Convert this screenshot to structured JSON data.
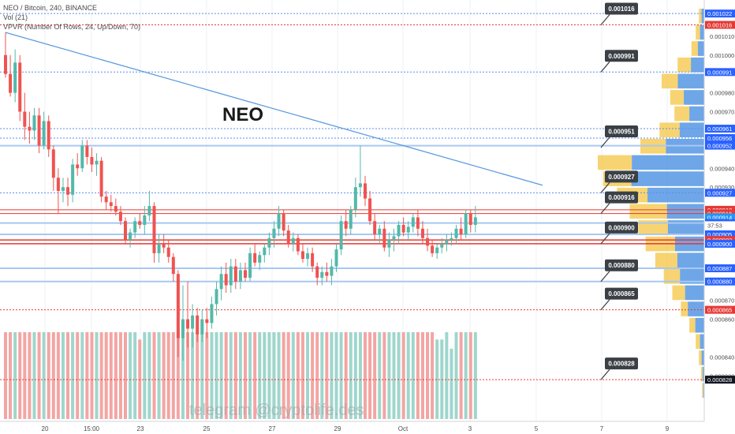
{
  "header": {
    "symbol_line": "NEO / Bitcoin, 240, BINANCE",
    "vol_line": "Vol (21)",
    "vpvr_line": "VPVR (Number Of Rows, 24, Up/Down, 70)"
  },
  "chart_title": "NEO",
  "watermark": "telegram @cryptolife.des",
  "colors": {
    "up": "#53b9a9",
    "down": "#ef5350",
    "vol_up": "#9fd6cc",
    "vol_down": "#f3a5a3",
    "blue_level": "#a8c8f0",
    "red_level": "#e53935",
    "trendline": "#5b9be0",
    "note_bg": "#3a4045",
    "price_tag": "#2962ff",
    "current_tag": "#2196f3",
    "red_tag": "#e53935",
    "black_tag": "#131722",
    "vpvr_up": "#4a90e2",
    "vpvr_down": "#f4c542"
  },
  "chart_data": {
    "type": "candlestick",
    "symbol": "NEO/BTC",
    "interval": "240",
    "exchange": "BINANCE",
    "ylim": [
      0.000818,
      0.001025
    ],
    "x_tick_labels": [
      "20",
      "15:00",
      "23",
      "25",
      "27",
      "29",
      "Oct",
      "3",
      "5",
      "7",
      "9"
    ],
    "price_axis_labels": [
      {
        "value": "0.001022",
        "kind": "tag_blue"
      },
      {
        "value": "0.001016",
        "kind": "tag_red"
      },
      {
        "value": "0.001010",
        "kind": "plain"
      },
      {
        "value": "0.001000",
        "kind": "plain"
      },
      {
        "value": "0.000991",
        "kind": "tag_blue"
      },
      {
        "value": "0.000980",
        "kind": "plain"
      },
      {
        "value": "0.000970",
        "kind": "plain"
      },
      {
        "value": "0.000961",
        "kind": "tag_blue"
      },
      {
        "value": "0.000956",
        "kind": "tag_blue"
      },
      {
        "value": "0.000952",
        "kind": "tag_blue"
      },
      {
        "value": "0.000940",
        "kind": "plain"
      },
      {
        "value": "0.000930",
        "kind": "plain"
      },
      {
        "value": "0.000927",
        "kind": "tag_blue"
      },
      {
        "value": "0.000918",
        "kind": "tag_red"
      },
      {
        "value": "0.000916",
        "kind": "tag_red"
      },
      {
        "value": "0.000914",
        "kind": "tag_current"
      },
      {
        "value": "0.000911",
        "kind": "tag_blue"
      },
      {
        "value": "0.000905",
        "kind": "tag_blue"
      },
      {
        "value": "0.000902",
        "kind": "tag_red"
      },
      {
        "value": "0.000900",
        "kind": "tag_blue"
      },
      {
        "value": "0.000887",
        "kind": "tag_blue"
      },
      {
        "value": "0.000880",
        "kind": "tag_blue"
      },
      {
        "value": "0.000870",
        "kind": "plain"
      },
      {
        "value": "0.000865",
        "kind": "tag_red"
      },
      {
        "value": "0.000860",
        "kind": "plain"
      },
      {
        "value": "0.000840",
        "kind": "plain"
      },
      {
        "value": "0.000830",
        "kind": "plain"
      },
      {
        "value": "0.000828",
        "kind": "tag_black"
      }
    ],
    "countdown": "37:53",
    "horizontal_levels": [
      {
        "price": 0.001022,
        "style": "blue-dotted"
      },
      {
        "price": 0.001016,
        "style": "red-dotted"
      },
      {
        "price": 0.000991,
        "style": "blue-dotted"
      },
      {
        "price": 0.000961,
        "style": "blue-dotted"
      },
      {
        "price": 0.000956,
        "style": "blue-dotted"
      },
      {
        "price": 0.000952,
        "style": "blue-solid"
      },
      {
        "price": 0.000927,
        "style": "blue-dotted"
      },
      {
        "price": 0.000918,
        "style": "red-solid-thin"
      },
      {
        "price": 0.000916,
        "style": "red-solid-thin"
      },
      {
        "price": 0.000911,
        "style": "blue-solid"
      },
      {
        "price": 0.000905,
        "style": "blue-solid"
      },
      {
        "price": 0.000902,
        "style": "red-solid"
      },
      {
        "price": 0.0009,
        "style": "red-solid"
      },
      {
        "price": 0.000887,
        "style": "blue-solid"
      },
      {
        "price": 0.00088,
        "style": "blue-solid"
      },
      {
        "price": 0.000865,
        "style": "red-dotted"
      },
      {
        "price": 0.000828,
        "style": "red-dotted"
      }
    ],
    "trendline": {
      "from": {
        "bar": 0,
        "price": 0.001012
      },
      "to": {
        "bar": 112,
        "price": 0.000931
      }
    },
    "annotations": [
      {
        "text": "0.001016",
        "price": 0.001016
      },
      {
        "text": "0.000991",
        "price": 0.000991
      },
      {
        "text": "0.000951",
        "price": 0.000951
      },
      {
        "text": "0.000927",
        "price": 0.000927
      },
      {
        "text": "0.000916",
        "price": 0.000916
      },
      {
        "text": "0.000900",
        "price": 0.0009
      },
      {
        "text": "0.000880",
        "price": 0.00088
      },
      {
        "text": "0.000865",
        "price": 0.000865
      },
      {
        "text": "0.000828",
        "price": 0.000828
      }
    ],
    "candles": [
      [
        0.001,
        0.001012,
        0.000988,
        0.00099
      ],
      [
        0.00099,
        0.001,
        0.000978,
        0.00098
      ],
      [
        0.00098,
        0.001003,
        0.000975,
        0.000996
      ],
      [
        0.000996,
        0.001,
        0.000965,
        0.00097
      ],
      [
        0.00097,
        0.00098,
        0.000955,
        0.000962
      ],
      [
        0.000962,
        0.00097,
        0.000953,
        0.00096
      ],
      [
        0.00096,
        0.000972,
        0.000955,
        0.000968
      ],
      [
        0.000968,
        0.000972,
        0.000948,
        0.000952
      ],
      [
        0.000952,
        0.00097,
        0.00095,
        0.000965
      ],
      [
        0.000965,
        0.000968,
        0.000946,
        0.00095
      ],
      [
        0.00095,
        0.000952,
        0.000928,
        0.000935
      ],
      [
        0.000935,
        0.00094,
        0.000916,
        0.000928
      ],
      [
        0.000928,
        0.000935,
        0.000922,
        0.00093
      ],
      [
        0.00093,
        0.000935,
        0.00092,
        0.000926
      ],
      [
        0.000926,
        0.000945,
        0.000922,
        0.000942
      ],
      [
        0.000942,
        0.000948,
        0.000936,
        0.00094
      ],
      [
        0.00094,
        0.000955,
        0.000938,
        0.000952
      ],
      [
        0.000952,
        0.000955,
        0.000942,
        0.000946
      ],
      [
        0.000946,
        0.000951,
        0.000938,
        0.000942
      ],
      [
        0.000942,
        0.000948,
        0.000936,
        0.000944
      ],
      [
        0.000944,
        0.000946,
        0.000922,
        0.000925
      ],
      [
        0.000925,
        0.000928,
        0.000918,
        0.000922
      ],
      [
        0.000922,
        0.000926,
        0.000917,
        0.00092
      ],
      [
        0.00092,
        0.000924,
        0.000915,
        0.000917
      ],
      [
        0.000917,
        0.00092,
        0.00091,
        0.000912
      ],
      [
        0.000912,
        0.000914,
        0.0009,
        0.000902
      ],
      [
        0.000902,
        0.000908,
        0.000898,
        0.000906
      ],
      [
        0.000906,
        0.000914,
        0.000903,
        0.000912
      ],
      [
        0.000912,
        0.000916,
        0.000908,
        0.00091
      ],
      [
        0.00091,
        0.00092,
        0.000905,
        0.000915
      ],
      [
        0.000915,
        0.000928,
        0.000912,
        0.00092
      ],
      [
        0.00092,
        0.000922,
        0.00089,
        0.000895
      ],
      [
        0.000895,
        0.000905,
        0.00089,
        0.0009
      ],
      [
        0.0009,
        0.000905,
        0.000895,
        0.000898
      ],
      [
        0.000898,
        0.000902,
        0.00089,
        0.000893
      ],
      [
        0.000893,
        0.000895,
        0.00088,
        0.000884
      ],
      [
        0.000884,
        0.000886,
        0.00084,
        0.00085
      ],
      [
        0.00085,
        0.000878,
        0.000838,
        0.00086
      ],
      [
        0.00086,
        0.00088,
        0.000845,
        0.000855
      ],
      [
        0.000855,
        0.000868,
        0.000845,
        0.000862
      ],
      [
        0.000862,
        0.000866,
        0.000848,
        0.000852
      ],
      [
        0.000852,
        0.000865,
        0.000848,
        0.00086
      ],
      [
        0.00086,
        0.000866,
        0.00085,
        0.000858
      ],
      [
        0.000858,
        0.000872,
        0.000855,
        0.000868
      ],
      [
        0.000868,
        0.00088,
        0.000862,
        0.000876
      ],
      [
        0.000876,
        0.000888,
        0.00087,
        0.000884
      ],
      [
        0.000884,
        0.00089,
        0.000874,
        0.000878
      ],
      [
        0.000878,
        0.000892,
        0.000874,
        0.000888
      ],
      [
        0.000888,
        0.000892,
        0.000876,
        0.00088
      ],
      [
        0.00088,
        0.00089,
        0.000876,
        0.000886
      ],
      [
        0.000886,
        0.00089,
        0.00088,
        0.000882
      ],
      [
        0.000882,
        0.000898,
        0.00088,
        0.000895
      ],
      [
        0.000895,
        0.0009,
        0.000888,
        0.00089
      ],
      [
        0.00089,
        0.000896,
        0.000886,
        0.000894
      ],
      [
        0.000894,
        0.0009,
        0.00089,
        0.000898
      ],
      [
        0.000898,
        0.000906,
        0.000894,
        0.000903
      ],
      [
        0.000903,
        0.000912,
        0.000898,
        0.000908
      ],
      [
        0.000908,
        0.00092,
        0.000904,
        0.000916
      ],
      [
        0.000916,
        0.000918,
        0.000904,
        0.000907
      ],
      [
        0.000907,
        0.00091,
        0.000898,
        0.0009
      ],
      [
        0.0009,
        0.000906,
        0.000896,
        0.000903
      ],
      [
        0.000903,
        0.000905,
        0.000894,
        0.000896
      ],
      [
        0.000896,
        0.0009,
        0.00089,
        0.000892
      ],
      [
        0.000892,
        0.000898,
        0.000888,
        0.000895
      ],
      [
        0.000895,
        0.000898,
        0.000885,
        0.000888
      ],
      [
        0.000888,
        0.00089,
        0.000878,
        0.000882
      ],
      [
        0.000882,
        0.000888,
        0.000878,
        0.000885
      ],
      [
        0.000885,
        0.00089,
        0.00088,
        0.000883
      ],
      [
        0.000883,
        0.000892,
        0.000878,
        0.000888
      ],
      [
        0.000888,
        0.0009,
        0.000885,
        0.000897
      ],
      [
        0.000897,
        0.000915,
        0.000894,
        0.000912
      ],
      [
        0.000912,
        0.000918,
        0.000904,
        0.000908
      ],
      [
        0.000908,
        0.00092,
        0.000905,
        0.000918
      ],
      [
        0.000918,
        0.000935,
        0.000914,
        0.00093
      ],
      [
        0.00093,
        0.000952,
        0.000925,
        0.000932
      ],
      [
        0.000932,
        0.000936,
        0.00092,
        0.000924
      ],
      [
        0.000924,
        0.000928,
        0.00091,
        0.000912
      ],
      [
        0.000912,
        0.000916,
        0.000902,
        0.000905
      ],
      [
        0.000905,
        0.00091,
        0.0009,
        0.000908
      ],
      [
        0.000908,
        0.000912,
        0.000896,
        0.000898
      ],
      [
        0.000898,
        0.000906,
        0.000893,
        0.000902
      ],
      [
        0.000902,
        0.000908,
        0.000896,
        0.000904
      ],
      [
        0.000904,
        0.000912,
        0.0009,
        0.00091
      ],
      [
        0.00091,
        0.000914,
        0.000904,
        0.000906
      ],
      [
        0.000906,
        0.000912,
        0.000902,
        0.000909
      ],
      [
        0.000909,
        0.000916,
        0.000906,
        0.000914
      ],
      [
        0.000914,
        0.000918,
        0.000904,
        0.000908
      ],
      [
        0.000908,
        0.000912,
        0.0009,
        0.000903
      ],
      [
        0.000903,
        0.000908,
        0.000896,
        0.000899
      ],
      [
        0.000899,
        0.000902,
        0.000893,
        0.000895
      ],
      [
        0.000895,
        0.0009,
        0.000892,
        0.000898
      ],
      [
        0.000898,
        0.000903,
        0.000895,
        0.0009
      ],
      [
        0.0009,
        0.000905,
        0.000896,
        0.000902
      ],
      [
        0.000902,
        0.000906,
        0.000899,
        0.000903
      ],
      [
        0.000903,
        0.00091,
        0.0009,
        0.000908
      ],
      [
        0.000908,
        0.000914,
        0.000902,
        0.000905
      ],
      [
        0.000905,
        0.000918,
        0.000903,
        0.000916
      ],
      [
        0.000916,
        0.000918,
        0.000906,
        0.00091
      ],
      [
        0.00091,
        0.00092,
        0.000906,
        0.000914
      ]
    ]
  }
}
